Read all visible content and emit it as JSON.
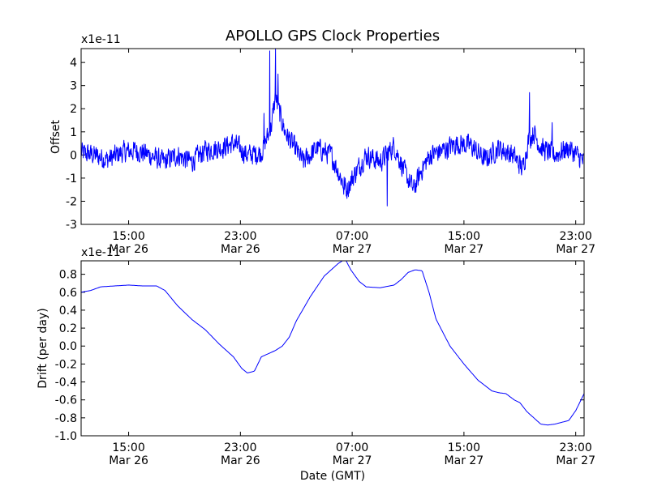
{
  "figure": {
    "background": "#ffffff",
    "line_color": "#0000ff",
    "frame_color": "#000000"
  },
  "chart_data": [
    {
      "type": "line",
      "title": "APOLLO GPS Clock Properties",
      "ylabel": "Offset",
      "xlabel": "",
      "y_multiplier_label": "x1e-11",
      "ylim": [
        -3,
        4.6
      ],
      "yticks": [
        -3,
        -2,
        -1,
        0,
        1,
        2,
        3,
        4
      ],
      "ytick_labels": [
        "-3",
        "-2",
        "-1",
        "0",
        "1",
        "2",
        "3",
        "4"
      ],
      "xlim_hours": [
        11.6,
        47.6
      ],
      "xticks_hours": [
        15,
        23,
        31,
        39,
        47
      ],
      "xtick_labels": [
        [
          "15:00",
          "Mar 26"
        ],
        [
          "23:00",
          "Mar 26"
        ],
        [
          "07:00",
          "Mar 27"
        ],
        [
          "15:00",
          "Mar 27"
        ],
        [
          "23:00",
          "Mar 27"
        ]
      ],
      "grid": false,
      "series": [
        {
          "color": "#0000ff",
          "x_hours": [
            11.6,
            12.5,
            13.5,
            14.5,
            15.5,
            16.5,
            17.5,
            18.5,
            19.5,
            20.5,
            21.5,
            22.5,
            23.5,
            24.5,
            25.2,
            25.5,
            25.8,
            26.2,
            26.8,
            27.5,
            28.5,
            29.5,
            30.2,
            30.6,
            31.2,
            32.0,
            33.0,
            34.0,
            34.8,
            35.4,
            36.0,
            36.6,
            37.5,
            38.5,
            39.5,
            40.5,
            41.5,
            42.5,
            43.2,
            43.6,
            44.0,
            44.5,
            45.5,
            46.5,
            47.6
          ],
          "values": [
            0.1,
            0.0,
            -0.2,
            0.1,
            0.2,
            0.0,
            -0.3,
            0.0,
            -0.3,
            0.2,
            0.3,
            0.5,
            0.0,
            0.1,
            1.2,
            2.5,
            1.8,
            1.0,
            0.4,
            -0.3,
            0.3,
            0.0,
            -1.0,
            -1.5,
            -0.8,
            0.0,
            -0.3,
            0.4,
            -0.8,
            -1.5,
            -0.6,
            0.0,
            0.2,
            0.5,
            0.4,
            -0.2,
            0.3,
            0.0,
            -0.6,
            0.6,
            1.0,
            0.3,
            0.0,
            0.3,
            -0.3
          ],
          "noise": 0.7,
          "spikes": [
            {
              "x_hours": 25.1,
              "value": 4.5
            },
            {
              "x_hours": 25.5,
              "value": 4.6
            },
            {
              "x_hours": 25.7,
              "value": 3.5
            },
            {
              "x_hours": 24.7,
              "value": 1.8
            },
            {
              "x_hours": 43.7,
              "value": 2.7
            },
            {
              "x_hours": 33.5,
              "value": -2.2
            },
            {
              "x_hours": 30.4,
              "value": -1.7
            },
            {
              "x_hours": 45.3,
              "value": 1.4
            }
          ]
        }
      ]
    },
    {
      "type": "line",
      "title": "",
      "ylabel": "Drift (per day)",
      "xlabel": "Date (GMT)",
      "y_multiplier_label": "x1e-11",
      "ylim": [
        -1.0,
        0.95
      ],
      "yticks": [
        -1.0,
        -0.8,
        -0.6,
        -0.4,
        -0.2,
        0.0,
        0.2,
        0.4,
        0.6,
        0.8
      ],
      "ytick_labels": [
        "-1.0",
        "-0.8",
        "-0.6",
        "-0.4",
        "-0.2",
        "0.0",
        "0.2",
        "0.4",
        "0.6",
        "0.8"
      ],
      "xlim_hours": [
        11.6,
        47.6
      ],
      "xticks_hours": [
        15,
        23,
        31,
        39,
        47
      ],
      "xtick_labels": [
        [
          "15:00",
          "Mar 26"
        ],
        [
          "23:00",
          "Mar 26"
        ],
        [
          "07:00",
          "Mar 27"
        ],
        [
          "15:00",
          "Mar 27"
        ],
        [
          "23:00",
          "Mar 27"
        ]
      ],
      "grid": false,
      "series": [
        {
          "color": "#0000ff",
          "x_hours": [
            11.6,
            12.3,
            13.0,
            14.0,
            15.0,
            16.0,
            17.0,
            17.6,
            18.5,
            19.5,
            20.5,
            21.5,
            22.5,
            23.1,
            23.5,
            24.0,
            24.5,
            25.5,
            26.0,
            26.5,
            27.0,
            28.0,
            29.0,
            30.0,
            30.5,
            30.9,
            31.5,
            32.0,
            33.0,
            34.0,
            34.5,
            35.0,
            35.5,
            36.0,
            36.5,
            37.0,
            38.0,
            39.0,
            40.0,
            41.0,
            41.5,
            42.0,
            42.6,
            43.0,
            43.5,
            44.0,
            44.5,
            45.0,
            45.5,
            46.0,
            46.5,
            47.0,
            47.6
          ],
          "values": [
            0.6,
            0.62,
            0.66,
            0.67,
            0.68,
            0.67,
            0.67,
            0.62,
            0.45,
            0.3,
            0.18,
            0.02,
            -0.12,
            -0.25,
            -0.3,
            -0.28,
            -0.12,
            -0.05,
            0.0,
            0.1,
            0.28,
            0.55,
            0.78,
            0.92,
            0.97,
            0.85,
            0.72,
            0.66,
            0.65,
            0.68,
            0.74,
            0.82,
            0.85,
            0.84,
            0.6,
            0.3,
            0.0,
            -0.2,
            -0.38,
            -0.5,
            -0.52,
            -0.53,
            -0.6,
            -0.63,
            -0.73,
            -0.8,
            -0.87,
            -0.88,
            -0.87,
            -0.85,
            -0.83,
            -0.72,
            -0.53
          ]
        }
      ]
    }
  ]
}
